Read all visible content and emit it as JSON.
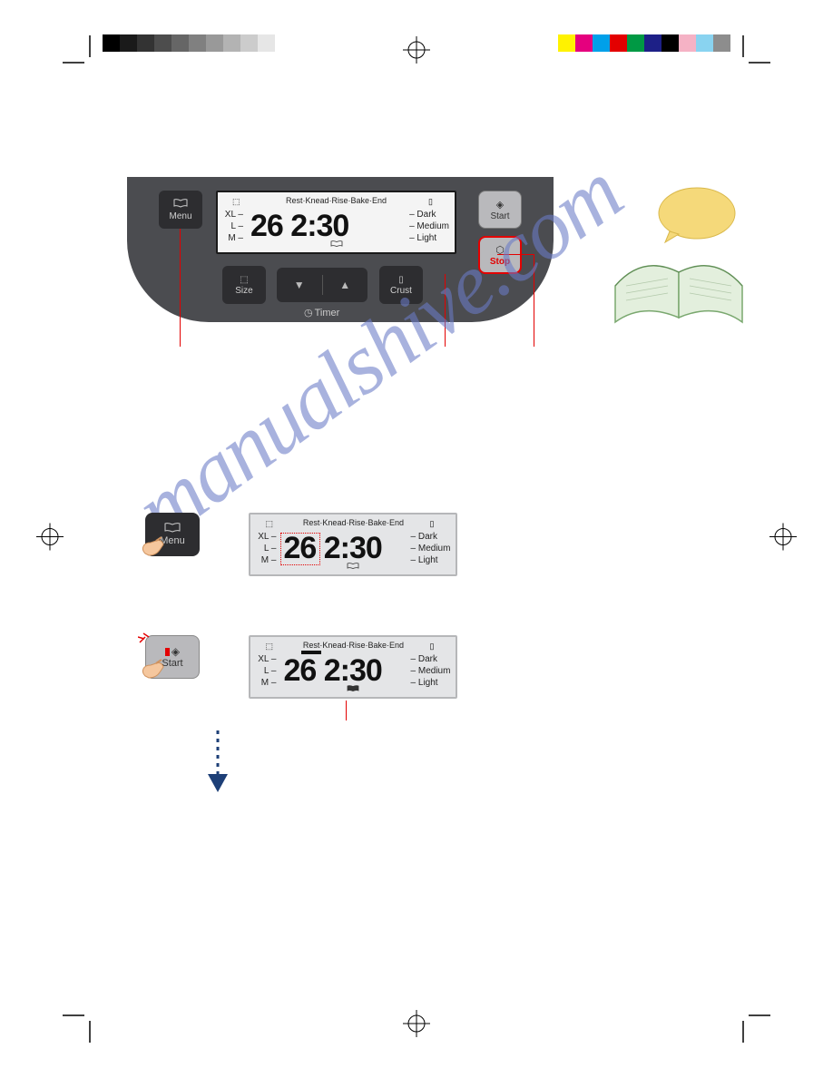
{
  "colors": {
    "panel_bg": "#4b4c50",
    "btn_dark": "#2d2d30",
    "btn_light": "#b9b9bc",
    "lcd_bg": "#f4f4f4",
    "mini_lcd_bg": "#e4e5e7",
    "red": "#e30000",
    "watermark": "#6b7cc7",
    "book_page": "#e3efdd",
    "book_bubble": "#f5d97a",
    "arrow_blue": "#1d3f77"
  },
  "graybar": [
    "#000000",
    "#1a1a1a",
    "#333333",
    "#4d4d4d",
    "#666666",
    "#808080",
    "#999999",
    "#b3b3b3",
    "#cccccc",
    "#e6e6e6",
    "#ffffff"
  ],
  "colorbar": [
    "#fff200",
    "#e5007e",
    "#00a0e9",
    "#e30000",
    "#009944",
    "#1d2087",
    "#000000",
    "#f5b2c5",
    "#89d3f0",
    "#8d8d8d"
  ],
  "panel": {
    "buttons": {
      "menu": "Menu",
      "size": "Size",
      "crust": "Crust",
      "start": "Start",
      "stop": "Stop",
      "timer": "Timer"
    }
  },
  "lcd": {
    "top": "Rest·Knead·Rise·Bake·End",
    "sizes": [
      "XL –",
      "L –",
      "M –"
    ],
    "crusts": [
      "– Dark",
      "– Medium",
      "– Light"
    ],
    "menu_num": "26",
    "time": "2:30"
  },
  "watermark_text": "manualshive.com"
}
